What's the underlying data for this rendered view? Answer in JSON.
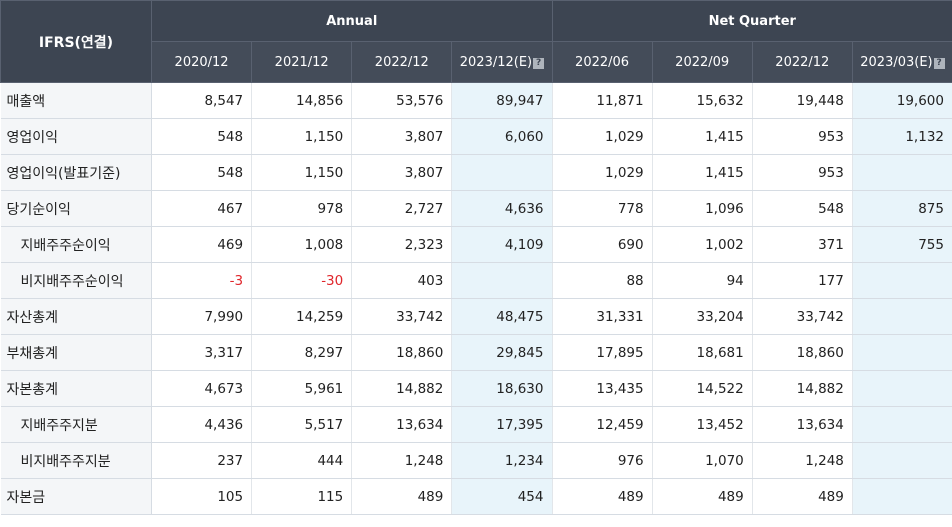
{
  "header": {
    "label": "IFRS(연결)",
    "group_annual": "Annual",
    "group_quarter": "Net Quarter",
    "columns": [
      "2020/12",
      "2021/12",
      "2022/12",
      "2023/12(E)",
      "2022/06",
      "2022/09",
      "2022/12",
      "2023/03(E)"
    ],
    "estimate_icon": "help-square-icon"
  },
  "rows": [
    {
      "label": "매출액",
      "values": [
        "8,547",
        "14,856",
        "53,576",
        "89,947",
        "11,871",
        "15,632",
        "19,448",
        "19,600"
      ]
    },
    {
      "label": "영업이익",
      "values": [
        "548",
        "1,150",
        "3,807",
        "6,060",
        "1,029",
        "1,415",
        "953",
        "1,132"
      ]
    },
    {
      "label": "영업이익(발표기준)",
      "values": [
        "548",
        "1,150",
        "3,807",
        "",
        "1,029",
        "1,415",
        "953",
        ""
      ]
    },
    {
      "label": "당기순이익",
      "values": [
        "467",
        "978",
        "2,727",
        "4,636",
        "778",
        "1,096",
        "548",
        "875"
      ]
    },
    {
      "label": "지배주주순이익",
      "values": [
        "469",
        "1,008",
        "2,323",
        "4,109",
        "690",
        "1,002",
        "371",
        "755"
      ]
    },
    {
      "label": "비지배주주순이익",
      "values": [
        "-3",
        "-30",
        "403",
        "",
        "88",
        "94",
        "177",
        ""
      ]
    },
    {
      "label": "자산총계",
      "values": [
        "7,990",
        "14,259",
        "33,742",
        "48,475",
        "31,331",
        "33,204",
        "33,742",
        ""
      ]
    },
    {
      "label": "부채총계",
      "values": [
        "3,317",
        "8,297",
        "18,860",
        "29,845",
        "17,895",
        "18,681",
        "18,860",
        ""
      ]
    },
    {
      "label": "자본총계",
      "values": [
        "4,673",
        "5,961",
        "14,882",
        "18,630",
        "13,435",
        "14,522",
        "14,882",
        ""
      ]
    },
    {
      "label": "지배주주지분",
      "values": [
        "4,436",
        "5,517",
        "13,634",
        "17,395",
        "12,459",
        "13,452",
        "13,634",
        ""
      ]
    },
    {
      "label": "비지배주주지분",
      "values": [
        "237",
        "444",
        "1,248",
        "1,234",
        "976",
        "1,070",
        "1,248",
        ""
      ]
    },
    {
      "label": "자본금",
      "values": [
        "105",
        "115",
        "489",
        "454",
        "489",
        "489",
        "489",
        ""
      ]
    }
  ],
  "colors": {
    "header_bg": "#3d4552",
    "estimate_bg": "#e8f4fa",
    "negative": "#e0262b",
    "label_bg": "#f4f6f8"
  }
}
